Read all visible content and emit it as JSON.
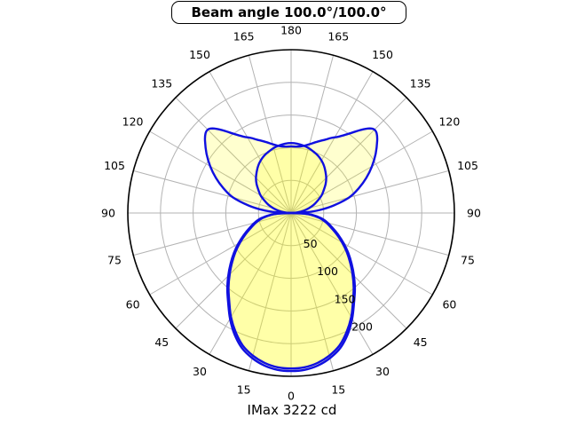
{
  "chart_data": {
    "type": "polar",
    "subtype": "photometric-intensity-distribution",
    "title": "Beam angle 100.0°/100.0°",
    "footer_label": "IMax 3222 cd",
    "imax_cd": 3222,
    "beam_angle_deg_plane1": 100.0,
    "beam_angle_deg_plane2": 100.0,
    "r_max": 250,
    "r_ticks": [
      50,
      100,
      150,
      200
    ],
    "r_tick_labels": [
      "50",
      "100",
      "150",
      "200"
    ],
    "angle_ticks_deg": [
      0,
      15,
      30,
      45,
      60,
      75,
      90,
      105,
      120,
      135,
      150,
      165,
      180
    ],
    "angle_tick_labels": [
      "0",
      "15",
      "30",
      "45",
      "60",
      "75",
      "90",
      "105",
      "120",
      "135",
      "150",
      "165",
      "180"
    ],
    "orientation": "0-at-bottom-180-at-top",
    "symmetry": "mirrored-left-right",
    "grid": true,
    "colors": {
      "grid": "#b3b3b3",
      "outer_ring": "#000000",
      "curve": "#1010e0",
      "fill": "#ffff00",
      "fill_opacity": 0.19,
      "text": "#000000",
      "background": "#ffffff"
    },
    "series": [
      {
        "name": "plane-1",
        "profile_theta_r": [
          [
            0,
            242
          ],
          [
            5,
            241
          ],
          [
            10,
            237
          ],
          [
            15,
            230
          ],
          [
            20,
            220
          ],
          [
            25,
            205
          ],
          [
            30,
            187
          ],
          [
            35,
            168
          ],
          [
            40,
            152
          ],
          [
            45,
            136
          ],
          [
            50,
            121
          ],
          [
            55,
            107
          ],
          [
            60,
            93
          ],
          [
            65,
            80
          ],
          [
            70,
            68
          ],
          [
            75,
            58
          ],
          [
            80,
            47
          ],
          [
            85,
            32
          ],
          [
            88,
            16
          ],
          [
            90,
            0
          ],
          [
            95,
            9
          ],
          [
            100,
            19
          ],
          [
            105,
            28
          ],
          [
            110,
            37
          ],
          [
            115,
            45
          ],
          [
            120,
            54
          ],
          [
            125,
            61
          ],
          [
            130,
            69
          ],
          [
            135,
            76
          ],
          [
            140,
            82
          ],
          [
            145,
            88
          ],
          [
            150,
            93
          ],
          [
            155,
            97
          ],
          [
            160,
            100
          ],
          [
            165,
            103
          ],
          [
            170,
            105
          ],
          [
            175,
            106.5
          ],
          [
            180,
            107
          ]
        ]
      },
      {
        "name": "plane-2",
        "profile_theta_r": [
          [
            0,
            238
          ],
          [
            5,
            237
          ],
          [
            10,
            233
          ],
          [
            15,
            226
          ],
          [
            20,
            216
          ],
          [
            25,
            201
          ],
          [
            30,
            184
          ],
          [
            35,
            165
          ],
          [
            40,
            149
          ],
          [
            45,
            133
          ],
          [
            50,
            118
          ],
          [
            55,
            104
          ],
          [
            60,
            90
          ],
          [
            65,
            77
          ],
          [
            70,
            65
          ],
          [
            75,
            55
          ],
          [
            80,
            44
          ],
          [
            85,
            30
          ],
          [
            88,
            14
          ],
          [
            90,
            0
          ],
          [
            93,
            24
          ],
          [
            96,
            44
          ],
          [
            100,
            66
          ],
          [
            105,
            92
          ],
          [
            110,
            110
          ],
          [
            115,
            127
          ],
          [
            120,
            143
          ],
          [
            125,
            158
          ],
          [
            130,
            172
          ],
          [
            133,
            179
          ],
          [
            135,
            180.5
          ],
          [
            137,
            177
          ],
          [
            140,
            166
          ],
          [
            144,
            150
          ],
          [
            148,
            138
          ],
          [
            152,
            130
          ],
          [
            155,
            124
          ],
          [
            160,
            116
          ],
          [
            165,
            109
          ],
          [
            170,
            104
          ],
          [
            175,
            102
          ],
          [
            180,
            102
          ]
        ]
      }
    ]
  }
}
